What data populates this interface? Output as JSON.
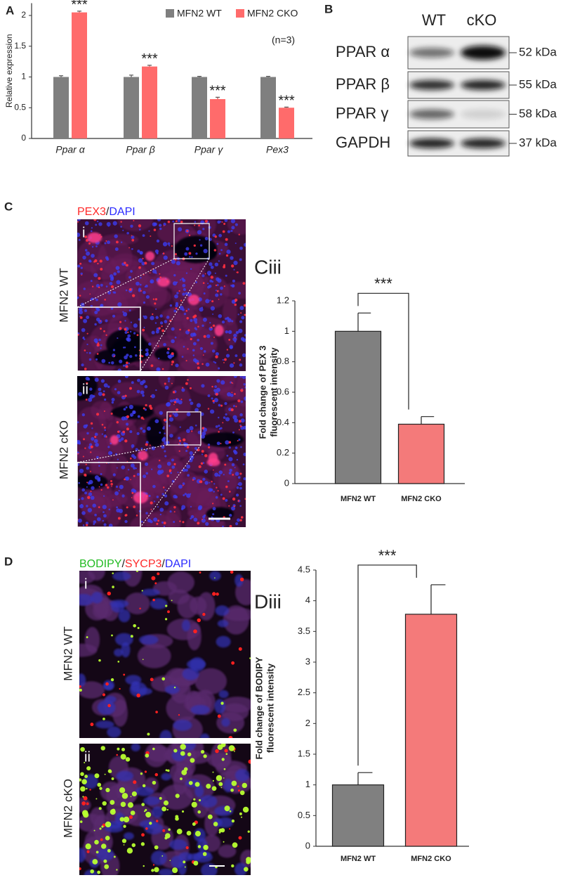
{
  "panel_labels": [
    "A",
    "B",
    "C",
    "D"
  ],
  "chart_data": [
    {
      "type": "bar",
      "ylabel": "Relative expression",
      "categories": [
        "Ppar α",
        "Ppar β",
        "Ppar γ",
        "Pex3"
      ],
      "series": [
        {
          "name": "MFN2 WT",
          "color": "#7f7f7f",
          "values": [
            1,
            1,
            1,
            1
          ],
          "errors": [
            0.02,
            0.03,
            0.01,
            0.01
          ]
        },
        {
          "name": "MFN2 CKO",
          "color": "#ff6b6b",
          "values": [
            2.05,
            1.17,
            0.64,
            0.5
          ],
          "errors": [
            0.02,
            0.02,
            0.03,
            0.01
          ]
        }
      ],
      "annotations": [
        "***",
        "***",
        "***",
        "***"
      ],
      "note": "(n=3)",
      "ylim": [
        0,
        2.2
      ],
      "yticks": [
        0,
        0.5,
        1,
        1.5,
        2
      ]
    },
    {
      "type": "bar",
      "title": "Ciii",
      "ylabel": [
        "Fold change of PEX 3",
        "fluorescent intensity"
      ],
      "categories": [
        "MFN2 WT",
        "MFN2 CKO"
      ],
      "values": [
        1,
        0.39
      ],
      "errors": [
        0.12,
        0.05
      ],
      "colors": [
        "#808080",
        "#f47a7a"
      ],
      "significance": "***",
      "ylim": [
        0,
        1.2
      ],
      "yticks": [
        0,
        0.2,
        0.4,
        0.6,
        0.8,
        1,
        1.2
      ]
    },
    {
      "type": "bar",
      "title": "Diii",
      "ylabel": [
        "Fold change of BODIPY",
        "fluorescent intensity"
      ],
      "categories": [
        "MFN2 WT",
        "MFN2 CKO"
      ],
      "values": [
        1,
        3.78
      ],
      "errors": [
        0.2,
        0.48
      ],
      "colors": [
        "#808080",
        "#f47a7a"
      ],
      "significance": "***",
      "ylim": [
        0,
        4.5
      ],
      "yticks": [
        0,
        0.5,
        1,
        1.5,
        2,
        2.5,
        3,
        3.5,
        4,
        4.5
      ]
    }
  ],
  "blot": {
    "columns": [
      "WT",
      "cKO"
    ],
    "rows": [
      {
        "protein": "PPAR α",
        "size": "52 kDa"
      },
      {
        "protein": "PPAR β",
        "size": "55 kDa"
      },
      {
        "protein": "PPAR γ",
        "size": "58 kDa"
      },
      {
        "protein": "GAPDH",
        "size": "37 kDa"
      }
    ]
  },
  "images": {
    "C": {
      "stain": [
        "PEX3",
        "/",
        "DAPI"
      ],
      "rows": [
        {
          "label": "MFN2 WT",
          "index": "i"
        },
        {
          "label": "MFN2 cKO",
          "index": "ii"
        }
      ]
    },
    "D": {
      "stain": [
        "BODIPY",
        "/",
        "SYCP3",
        "/",
        "DAPI"
      ],
      "rows": [
        {
          "label": "MFN2 WT",
          "index": "i"
        },
        {
          "label": "MFN2 cKO",
          "index": "ii"
        }
      ]
    }
  }
}
